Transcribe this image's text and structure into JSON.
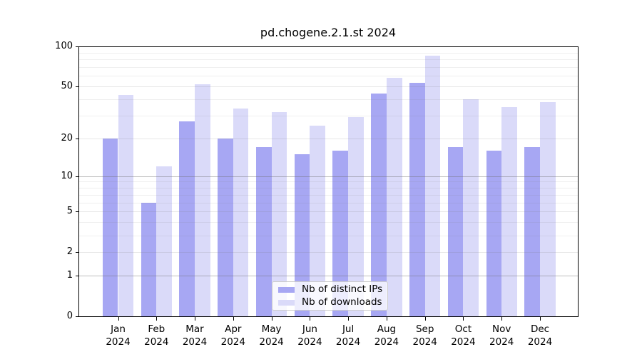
{
  "title": "pd.chogene.2.1.st 2024",
  "chart_data": {
    "type": "bar",
    "title": "pd.chogene.2.1.st 2024",
    "categories": [
      "Jan 2024",
      "Feb 2024",
      "Mar 2024",
      "Apr 2024",
      "May 2024",
      "Jun 2024",
      "Jul 2024",
      "Aug 2024",
      "Sep 2024",
      "Oct 2024",
      "Nov 2024",
      "Dec 2024"
    ],
    "series": [
      {
        "name": "Nb of distinct IPs",
        "color": "#a7a7f3",
        "values": [
          20,
          6,
          27,
          20,
          17,
          15,
          16,
          44,
          53,
          17,
          16,
          17
        ]
      },
      {
        "name": "Nb of downloads",
        "color": "#dadaf9",
        "values": [
          43,
          12,
          52,
          34,
          32,
          25,
          29,
          58,
          85,
          40,
          35,
          38
        ]
      }
    ],
    "xlabel": "",
    "ylabel": "",
    "ylim": [
      0,
      100
    ],
    "yscale": "log1p",
    "yticks": [
      0,
      1,
      2,
      5,
      10,
      20,
      50,
      100
    ],
    "minor_gridline_values": [
      3,
      4,
      6,
      7,
      8,
      9,
      30,
      40,
      60,
      70,
      80,
      90
    ],
    "emphasized_gridline_values": [
      1,
      10,
      100
    ],
    "grid": true,
    "legend_position": "bottom-center"
  },
  "colors": {
    "background": "#ffffff",
    "axis": "#000000",
    "bar_distinct_ips": "#a7a7f3",
    "bar_downloads": "#dadaf9"
  }
}
